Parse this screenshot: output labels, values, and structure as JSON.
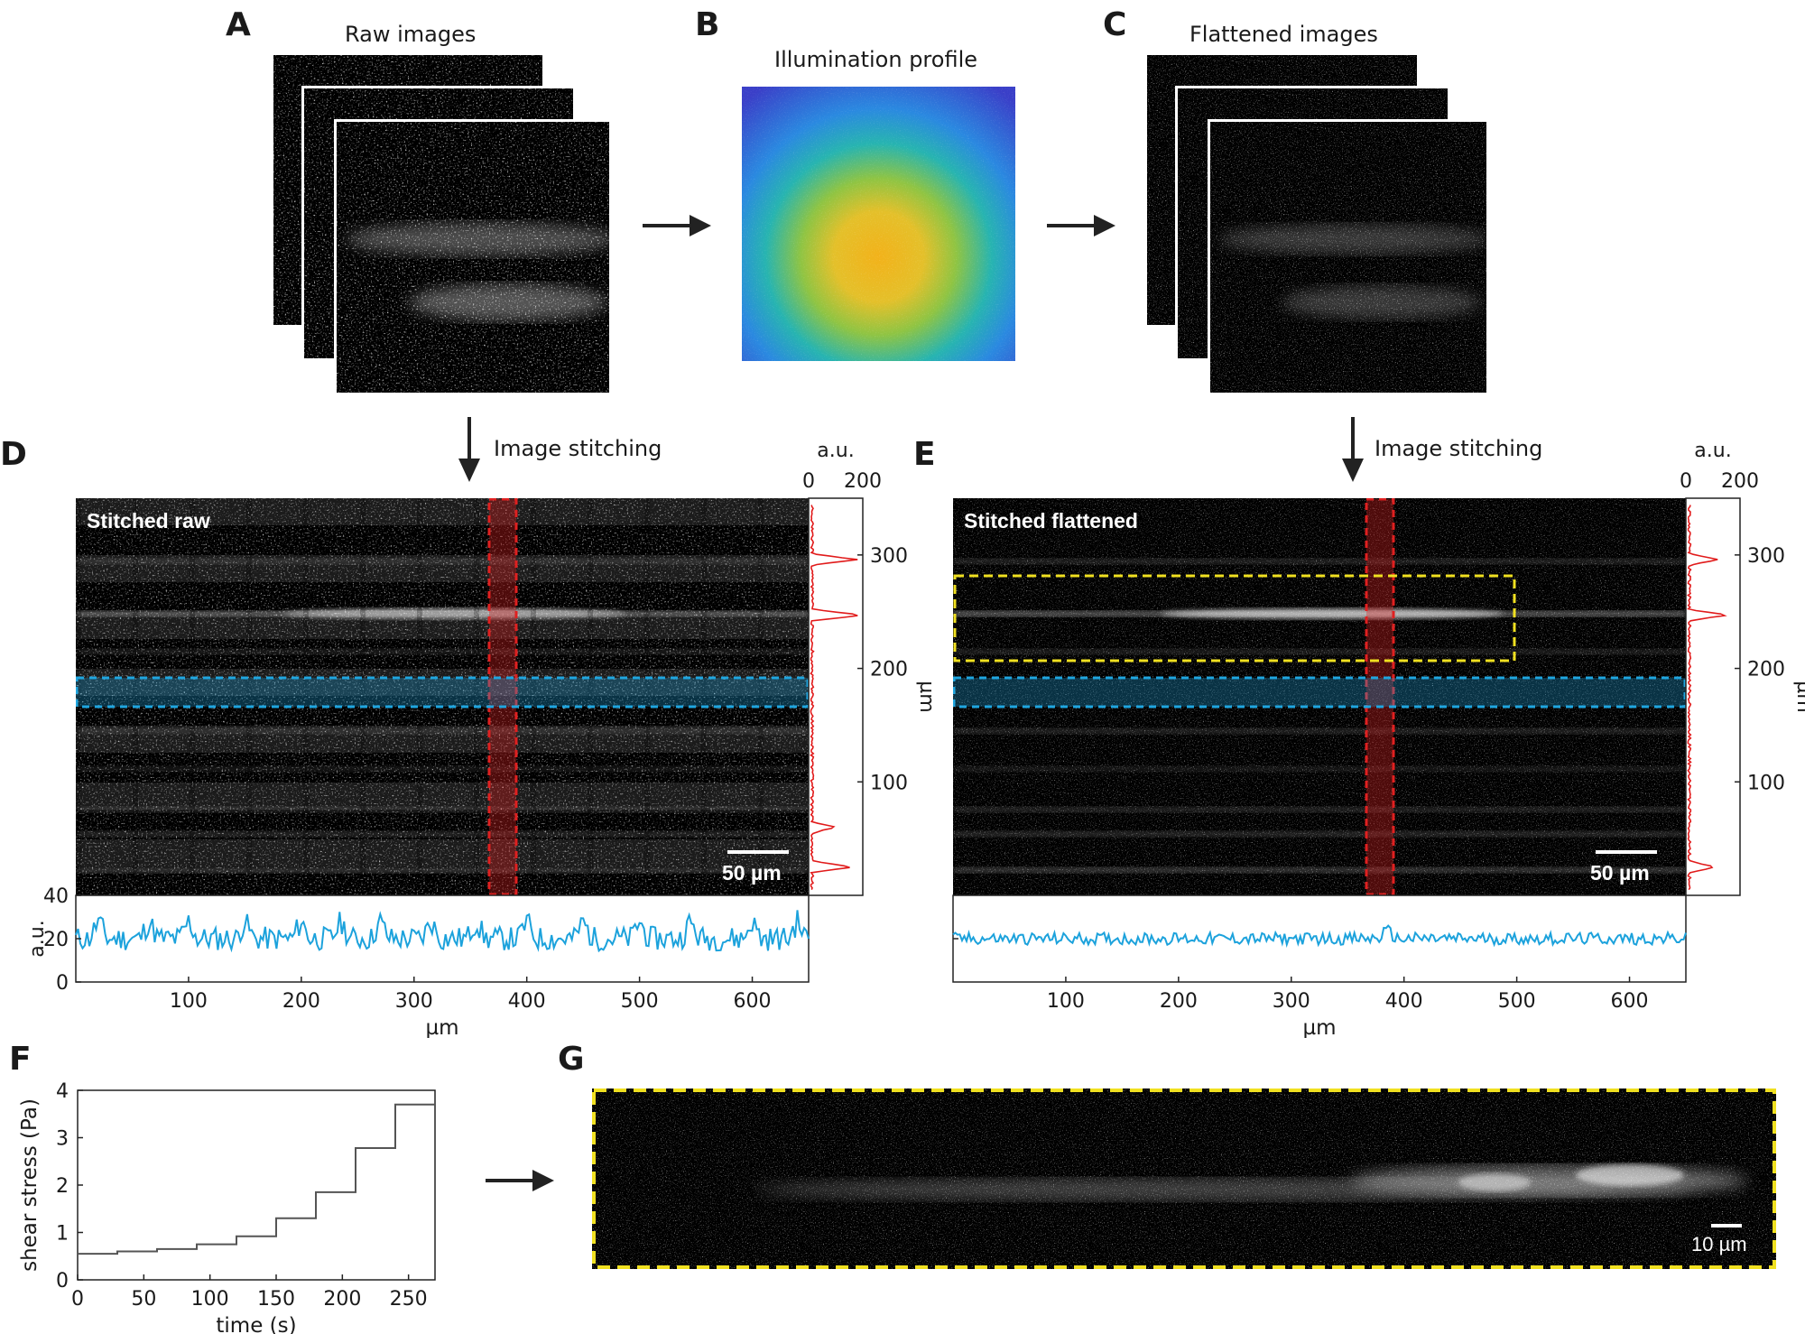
{
  "panels": {
    "a": {
      "letter": "A",
      "caption": "Raw images"
    },
    "b": {
      "letter": "B",
      "caption": "Illumination profile"
    },
    "c": {
      "letter": "C",
      "caption": "Flattened images"
    },
    "d": {
      "letter": "D",
      "process": "Image stitching",
      "overlay": "Stitched raw",
      "scalebar": "50 µm"
    },
    "e": {
      "letter": "E",
      "process": "Image stitching",
      "overlay": "Stitched flattened",
      "scalebar": "50 µm"
    },
    "f": {
      "letter": "F"
    },
    "g": {
      "letter": "G",
      "scalebar": "10 µm"
    }
  },
  "colors": {
    "profile_line": "#1ca2dc",
    "side_profile": "#e11b1b",
    "roi_red": "#e02020",
    "roi_blue": "#1fa6e0",
    "roi_yellow": "#f0e020",
    "step_line": "#555555",
    "heat_low": "#3a4bd8",
    "heat_high": "#f2b21a"
  },
  "icons": [
    "arrow-right-icon",
    "arrow-down-icon"
  ],
  "chart_data": [
    {
      "panel": "D-bottom",
      "type": "line",
      "xlabel": "µm",
      "ylabel": "a.u.",
      "xlim": [
        0,
        650
      ],
      "ylim": [
        0,
        40
      ],
      "xticks": [
        100,
        200,
        300,
        400,
        500,
        600
      ],
      "yticks": [
        0,
        20,
        40
      ],
      "series": [
        {
          "mean": 20,
          "amplitude": 8,
          "peaks": [
            20,
            65,
            100,
            150,
            200,
            235,
            270,
            315,
            355,
            400,
            450,
            500,
            545,
            600,
            640
          ]
        }
      ]
    },
    {
      "panel": "D-side",
      "type": "line",
      "xlabel": "a.u.",
      "ylabel": "µm",
      "xlim": [
        0,
        200
      ],
      "xticks": [
        0,
        200
      ],
      "yticks": [
        100,
        200,
        300
      ],
      "peaks_um": [
        {
          "y": 296,
          "v": 165
        },
        {
          "y": 247,
          "v": 190
        },
        {
          "y": 60,
          "v": 85
        },
        {
          "y": 25,
          "v": 150
        }
      ]
    },
    {
      "panel": "E-bottom",
      "type": "line",
      "xlabel": "µm",
      "xlim": [
        0,
        650
      ],
      "xticks": [
        100,
        200,
        300,
        400,
        500,
        600
      ],
      "series": [
        {
          "mean": 20,
          "amplitude": 4,
          "peaks": [
            385
          ]
        }
      ]
    },
    {
      "panel": "E-side",
      "type": "line",
      "xlabel": "a.u.",
      "ylabel": "µm",
      "xlim": [
        0,
        200
      ],
      "xticks": [
        0,
        200
      ],
      "yticks": [
        100,
        200,
        300
      ],
      "peaks_um": [
        {
          "y": 296,
          "v": 105
        },
        {
          "y": 247,
          "v": 140
        },
        {
          "y": 25,
          "v": 95
        }
      ]
    },
    {
      "panel": "F",
      "type": "line",
      "xlabel": "time (s)",
      "ylabel": "shear stress (Pa)",
      "xlim": [
        0,
        270
      ],
      "ylim": [
        0,
        4
      ],
      "xticks": [
        0,
        50,
        100,
        150,
        200,
        250
      ],
      "yticks": [
        0,
        1,
        2,
        3,
        4
      ],
      "steps": [
        {
          "t": 0,
          "v": 0.55
        },
        {
          "t": 30,
          "v": 0.6
        },
        {
          "t": 60,
          "v": 0.65
        },
        {
          "t": 90,
          "v": 0.75
        },
        {
          "t": 120,
          "v": 0.92
        },
        {
          "t": 150,
          "v": 1.3
        },
        {
          "t": 180,
          "v": 1.85
        },
        {
          "t": 210,
          "v": 2.78
        },
        {
          "t": 240,
          "v": 3.7
        },
        {
          "t": 270,
          "v": 3.7
        }
      ]
    }
  ]
}
